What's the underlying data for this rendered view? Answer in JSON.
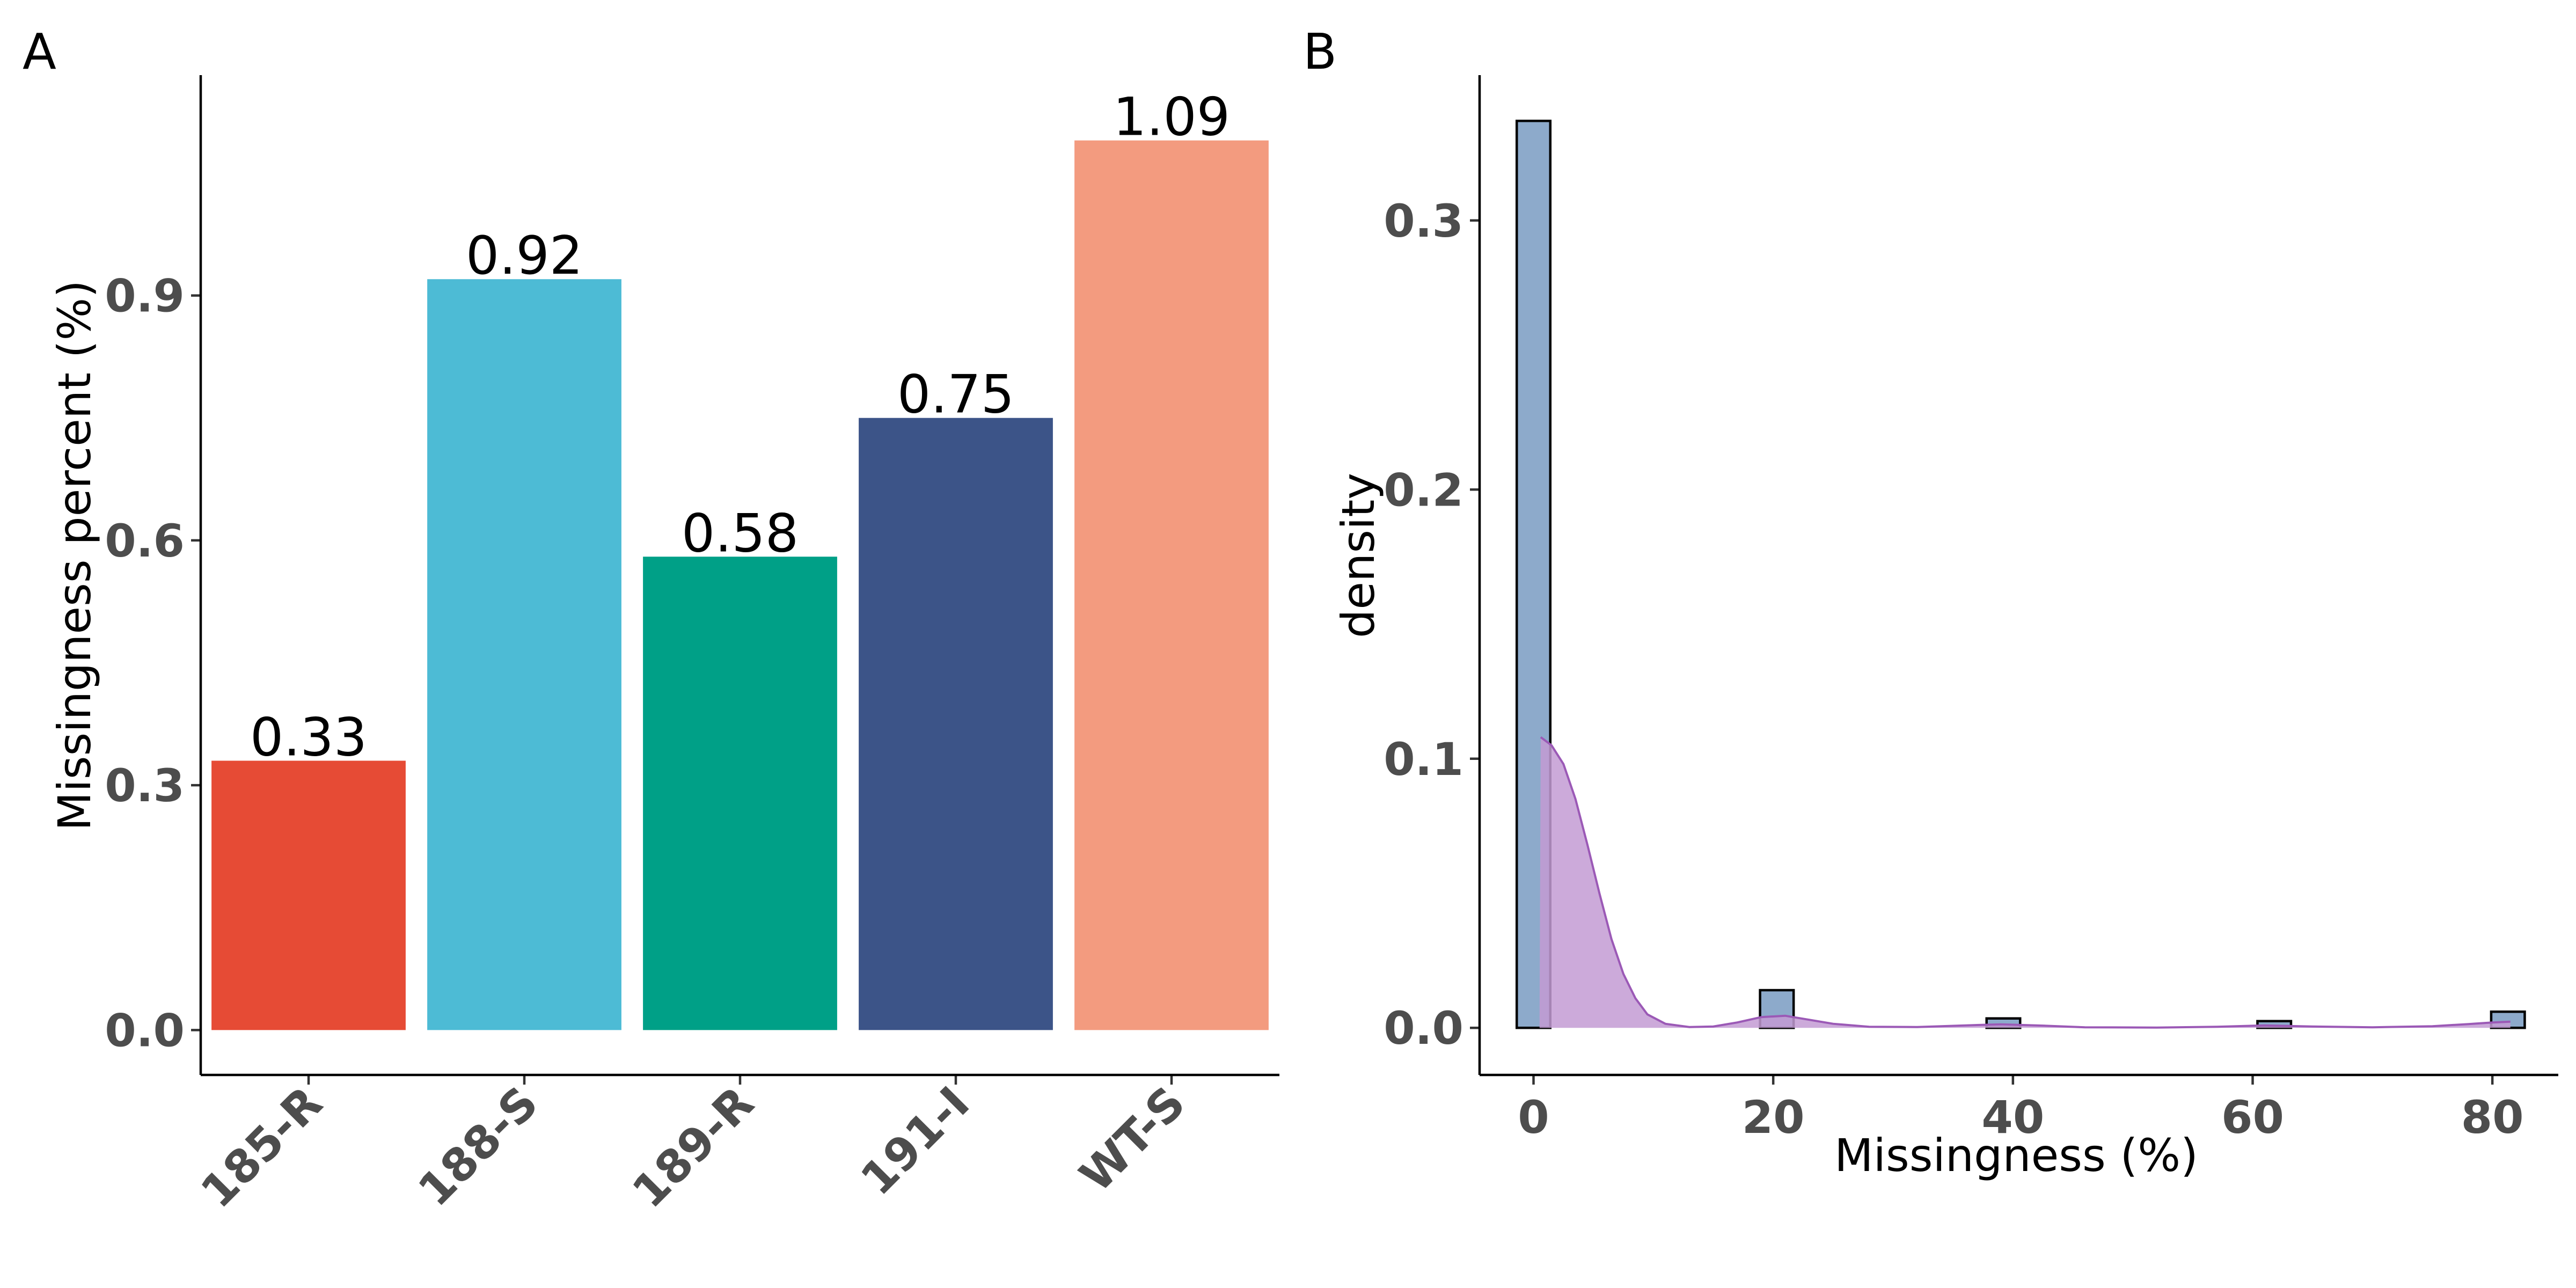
{
  "panels": {
    "a": {
      "letter": "A"
    },
    "b": {
      "letter": "B"
    }
  },
  "chart_data": [
    {
      "type": "bar",
      "panel": "A",
      "title": "",
      "xlabel": "",
      "ylabel": "Missingness percent (%)",
      "categories": [
        "185-R",
        "188-S",
        "189-R",
        "191-I",
        "WT-S"
      ],
      "values": [
        0.33,
        0.92,
        0.58,
        0.75,
        1.09
      ],
      "data_labels": [
        "0.33",
        "0.92",
        "0.58",
        "0.75",
        "1.09"
      ],
      "colors": [
        "#E64B35",
        "#4DBBD5",
        "#00A087",
        "#3C5488",
        "#F39B7F"
      ],
      "ylim": [
        -0.055,
        1.17
      ],
      "yticks": [
        0.0,
        0.3,
        0.6,
        0.9
      ],
      "ytick_labels": [
        "0.0",
        "0.3",
        "0.6",
        "0.9"
      ],
      "grid": false,
      "legend": "none"
    },
    {
      "type": "histogram",
      "panel": "B",
      "title": "",
      "xlabel": "Missingness (%)",
      "ylabel": "density",
      "bins": [
        {
          "x": 0,
          "density": 0.337
        },
        {
          "x": 20.3,
          "density": 0.014
        },
        {
          "x": 39.2,
          "density": 0.0035
        },
        {
          "x": 61.8,
          "density": 0.0025
        },
        {
          "x": 81.3,
          "density": 0.006
        }
      ],
      "bin_width": 2.8,
      "bar_fill": "#8DAACB",
      "bar_outline": "#000000",
      "density_curve": {
        "color": "#9B59B6",
        "fill": "#C39BD3",
        "points": [
          [
            0.5,
            0.0
          ],
          [
            0.6,
            0.108
          ],
          [
            1.5,
            0.105
          ],
          [
            2.5,
            0.098
          ],
          [
            3.5,
            0.085
          ],
          [
            4.5,
            0.068
          ],
          [
            5.5,
            0.05
          ],
          [
            6.5,
            0.033
          ],
          [
            7.5,
            0.02
          ],
          [
            8.5,
            0.011
          ],
          [
            9.5,
            0.005
          ],
          [
            11,
            0.0015
          ],
          [
            13,
            0.0003
          ],
          [
            15,
            0.0005
          ],
          [
            17,
            0.002
          ],
          [
            19,
            0.004
          ],
          [
            21,
            0.0045
          ],
          [
            23,
            0.003
          ],
          [
            25,
            0.0015
          ],
          [
            28,
            0.0004
          ],
          [
            32,
            0.0003
          ],
          [
            36,
            0.0009
          ],
          [
            39,
            0.0013
          ],
          [
            42,
            0.0009
          ],
          [
            46,
            0.0002
          ],
          [
            52,
            0.0001
          ],
          [
            57,
            0.0004
          ],
          [
            61,
            0.0009
          ],
          [
            65,
            0.0005
          ],
          [
            70,
            0.0002
          ],
          [
            75,
            0.0006
          ],
          [
            78,
            0.0014
          ],
          [
            80,
            0.002
          ],
          [
            81.5,
            0.0023
          ],
          [
            81.5,
            0.0
          ]
        ]
      },
      "xlim": [
        -4.5,
        85.5
      ],
      "ylim": [
        -0.0175,
        0.354
      ],
      "xticks": [
        0,
        20,
        40,
        60,
        80
      ],
      "xtick_labels": [
        "0",
        "20",
        "40",
        "60",
        "80"
      ],
      "yticks": [
        0.0,
        0.1,
        0.2,
        0.3
      ],
      "ytick_labels": [
        "0.0",
        "0.1",
        "0.2",
        "0.3"
      ],
      "grid": false,
      "legend": "none"
    }
  ]
}
